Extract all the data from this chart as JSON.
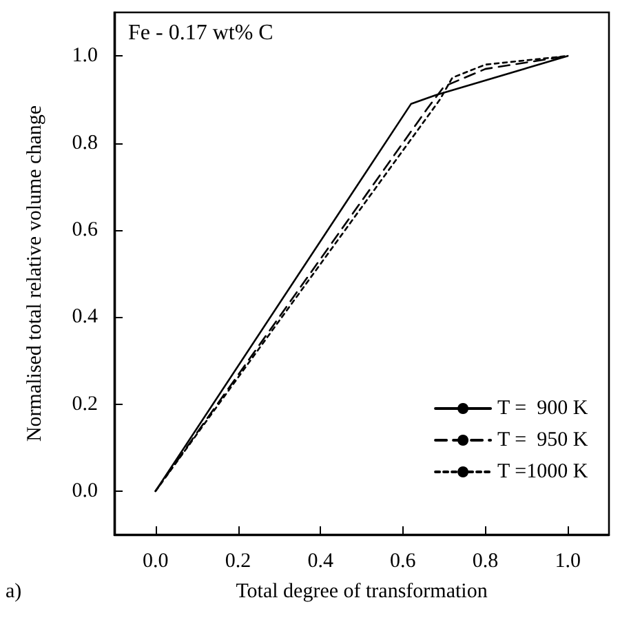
{
  "chart_data": {
    "type": "line",
    "xlabel": "Total degree of transformation",
    "ylabel": "Normalised total relative volume change",
    "annotations": [
      "Fe - 0.17 wt% C",
      "a)"
    ],
    "xlim": [
      -0.1,
      1.1
    ],
    "ylim": [
      -0.1,
      1.1
    ],
    "xticks": [
      {
        "value": 0,
        "label": "0.0"
      },
      {
        "value": 0.2,
        "label": "0.2"
      },
      {
        "value": 0.4,
        "label": "0.4"
      },
      {
        "value": 0.6,
        "label": "0.6"
      },
      {
        "value": 0.8,
        "label": "0.8"
      },
      {
        "value": 1,
        "label": "1.0"
      }
    ],
    "yticks": [
      {
        "value": 0,
        "label": "0.0"
      },
      {
        "value": 0.2,
        "label": "0.2"
      },
      {
        "value": 0.4,
        "label": "0.4"
      },
      {
        "value": 0.6,
        "label": "0.6"
      },
      {
        "value": 0.8,
        "label": "0.8"
      },
      {
        "value": 1,
        "label": "1.0"
      }
    ],
    "series": [
      {
        "name": "T =  900 K",
        "color": "#000000",
        "line_style": "solid",
        "x": [
          0,
          0.62,
          0.68,
          1
        ],
        "values": [
          0,
          0.89,
          0.91,
          1
        ]
      },
      {
        "name": "T =  950 K",
        "color": "#000000",
        "line_style": "dashed",
        "x": [
          0,
          0.66,
          0.7,
          0.8,
          1
        ],
        "values": [
          0,
          0.88,
          0.93,
          0.97,
          1
        ]
      },
      {
        "name": "T =1000 K",
        "color": "#000000",
        "line_style": "dotted",
        "x": [
          0,
          0.69,
          0.72,
          0.8,
          1
        ],
        "values": [
          0,
          0.9,
          0.95,
          0.98,
          1
        ]
      }
    ],
    "legend": "bottom right",
    "grid": false,
    "marker": "none"
  }
}
